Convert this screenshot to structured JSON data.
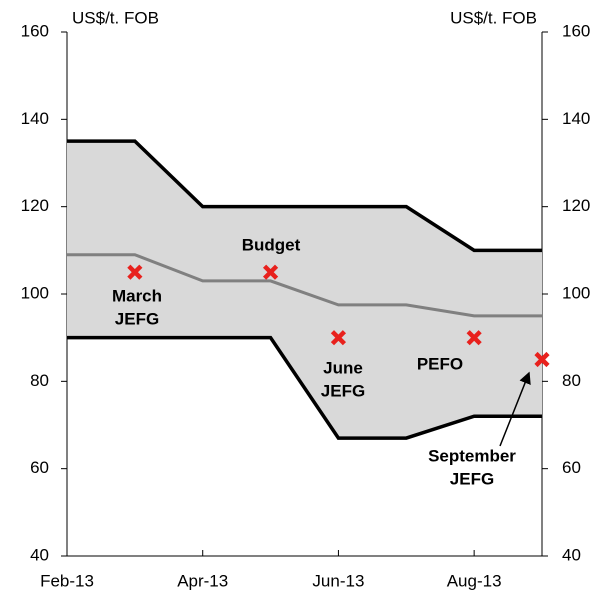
{
  "chart_data": {
    "type": "range-forecast",
    "y_label_left": "US$/t. FOB",
    "y_label_right": "US$/t. FOB",
    "x": [
      0,
      1,
      2,
      3,
      4,
      5,
      6,
      7
    ],
    "xlim": [
      0,
      7
    ],
    "xticks": [
      {
        "value": 0,
        "label": "Feb-13"
      },
      {
        "value": 2,
        "label": "Apr-13"
      },
      {
        "value": 4,
        "label": "Jun-13"
      },
      {
        "value": 6,
        "label": "Aug-13"
      }
    ],
    "ylim": [
      40,
      160
    ],
    "yticks": [
      40,
      60,
      80,
      100,
      120,
      140,
      160
    ],
    "y2lim": [
      40,
      160
    ],
    "y2ticks": [
      40,
      60,
      80,
      100,
      120,
      140,
      160
    ],
    "range_band": {
      "upper": [
        135,
        135,
        120,
        120,
        120,
        120,
        110,
        110
      ],
      "lower": [
        90,
        90,
        90,
        90,
        67,
        67,
        72,
        72
      ],
      "fill": "#d9d9d9",
      "edge_color": "#000000"
    },
    "central": {
      "values": [
        109,
        109,
        103,
        103,
        97.5,
        97.5,
        95,
        95
      ],
      "color": "#808080"
    },
    "forecasts": {
      "x": [
        1,
        3,
        4,
        6,
        7
      ],
      "values": [
        105,
        105,
        90,
        90,
        85
      ],
      "color": "#e8211d",
      "labels": [
        [
          "March",
          "JEFG"
        ],
        [
          "Budget"
        ],
        [
          "June",
          "JEFG"
        ],
        [
          "PEFO"
        ],
        [
          "September",
          "JEFG"
        ]
      ]
    }
  }
}
